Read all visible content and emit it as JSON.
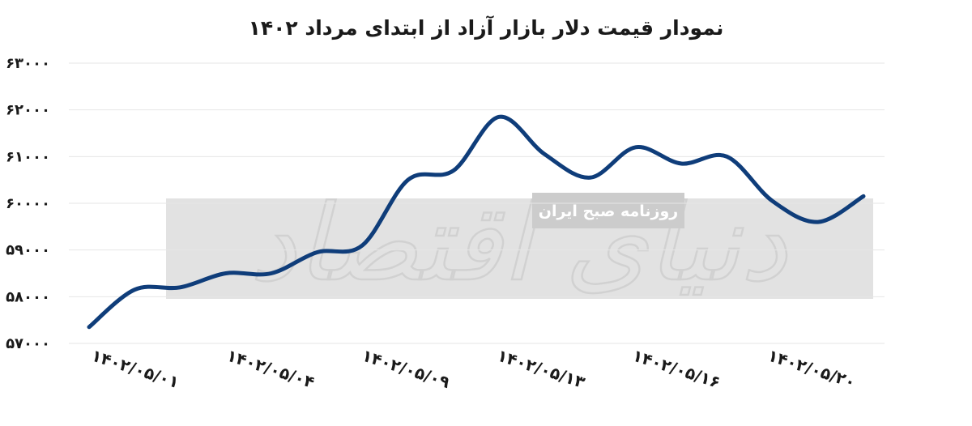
{
  "chart_data": {
    "type": "line",
    "title": "نمودار قیمت دلار بازار آزاد از ابتدای مرداد ۱۴۰۲",
    "xlabel": "",
    "ylabel": "",
    "ylim": [
      57000,
      63000
    ],
    "grid": true,
    "legend": "none",
    "y_ticks": [
      "۵۷۰۰۰",
      "۵۸۰۰۰",
      "۵۹۰۰۰",
      "۶۰۰۰۰",
      "۶۱۰۰۰",
      "۶۲۰۰۰",
      "۶۳۰۰۰"
    ],
    "x_ticks": [
      "۱۴۰۲/۰۵/۰۱",
      "۱۴۰۲/۰۵/۰۴",
      "۱۴۰۲/۰۵/۰۹",
      "۱۴۰۲/۰۵/۱۳",
      "۱۴۰۲/۰۵/۱۶",
      "۱۴۰۲/۰۵/۲۰"
    ],
    "line_color": "#0f3d7a",
    "series": [
      {
        "values": [
          57350,
          58150,
          58200,
          58500,
          58500,
          58950,
          59100,
          60500,
          60700,
          61850,
          61050,
          60550,
          61200,
          60850,
          61000,
          60050,
          59600,
          60150
        ]
      }
    ]
  },
  "watermark": {
    "publisher_logo": "دنیای اقتصاد",
    "tagline": "روزنامه صبح ایران"
  }
}
